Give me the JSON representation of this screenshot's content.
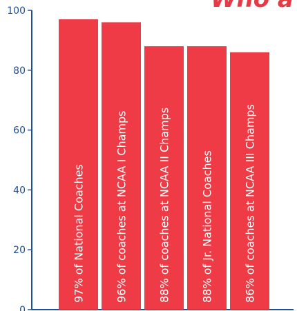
{
  "banner": {
    "text": "Who a"
  },
  "colors": {
    "bar": "#ef3b46",
    "axis": "#1e4f99",
    "background": "#ffffff",
    "bar_text": "#ffffff"
  },
  "chart_data": {
    "type": "bar",
    "title": "",
    "xlabel": "",
    "ylabel": "",
    "ylim": [
      0,
      100
    ],
    "grid": false,
    "yticks": [
      0,
      20,
      40,
      60,
      80,
      100
    ],
    "categories": [
      "97% of National Coaches",
      "96% of coaches at NCAA I Champs",
      "88% of coaches at NCAA II Champs",
      "88% of Jr. National Coaches",
      "86% of coaches at NCAA III Champs"
    ],
    "values": [
      97,
      96,
      88,
      88,
      86
    ]
  }
}
